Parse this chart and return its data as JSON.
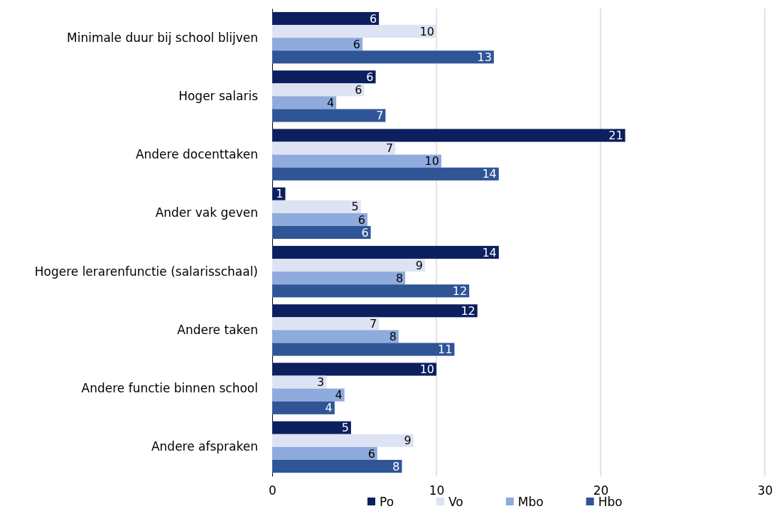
{
  "chart_data": {
    "type": "bar",
    "orientation": "horizontal",
    "categories": [
      "Minimale duur bij school blijven",
      "Hoger salaris",
      "Andere docenttaken",
      "Ander vak geven",
      "Hogere lerarenfunctie (salarisschaal)",
      "Andere taken",
      "Andere functie binnen school",
      "Andere afspraken"
    ],
    "series": [
      {
        "name": "Po",
        "color": "#0c1f5e",
        "values": [
          6.5,
          6.3,
          21.5,
          0.8,
          13.8,
          12.5,
          10.0,
          4.8
        ],
        "value_labels": [
          "6",
          "6",
          "21",
          "1",
          "14",
          "12",
          "10",
          "5"
        ]
      },
      {
        "name": "Vo",
        "color": "#dde3f3",
        "values": [
          10.0,
          5.6,
          7.5,
          5.4,
          9.3,
          6.5,
          3.3,
          8.6
        ],
        "value_labels": [
          "10",
          "6",
          "7",
          "5",
          "9",
          "7",
          "3",
          "9"
        ]
      },
      {
        "name": "Mbo",
        "color": "#8faadc",
        "values": [
          5.5,
          3.9,
          10.3,
          5.8,
          8.1,
          7.7,
          4.4,
          6.4
        ],
        "value_labels": [
          "6",
          "4",
          "10",
          "6",
          "8",
          "8",
          "4",
          "6"
        ]
      },
      {
        "name": "Hbo",
        "color": "#2f5597",
        "values": [
          13.5,
          6.9,
          13.8,
          6.0,
          12.0,
          11.1,
          3.8,
          7.9
        ],
        "value_labels": [
          "13",
          "7",
          "14",
          "6",
          "12",
          "11",
          "4",
          "8"
        ]
      }
    ],
    "xlim": [
      0,
      30
    ],
    "xticks": [
      0,
      10,
      20,
      30
    ],
    "grid": "x",
    "legend": "bottom"
  }
}
